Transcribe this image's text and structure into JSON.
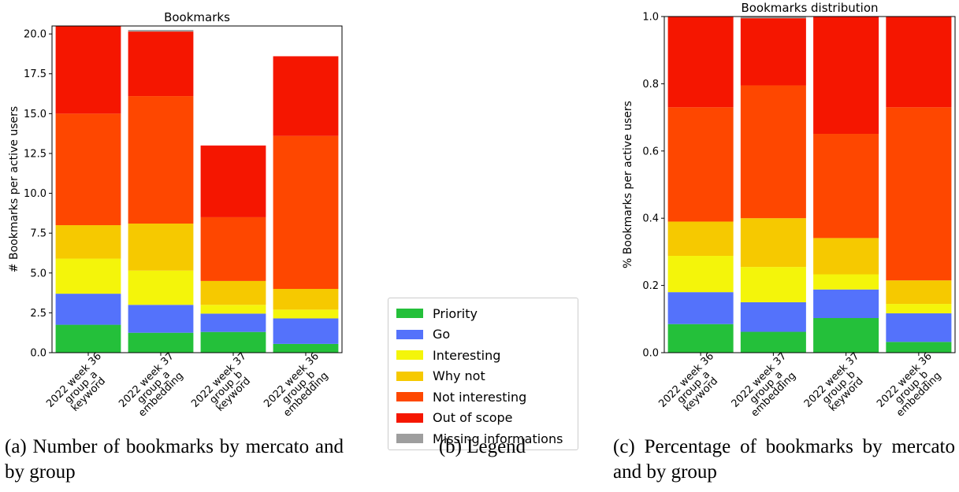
{
  "chart_data": [
    {
      "type": "bar",
      "stacked": true,
      "title": "Bookmarks",
      "ylabel": "# Bookmarks per active users",
      "xlabel": "",
      "ylim": [
        0,
        20.5
      ],
      "yticks": [
        "0.0",
        "2.5",
        "5.0",
        "7.5",
        "10.0",
        "12.5",
        "15.0",
        "17.5",
        "20.0"
      ],
      "categories": [
        [
          "2022 week 36",
          "group_a",
          "keyword"
        ],
        [
          "2022 week 37",
          "group_a",
          "embedding"
        ],
        [
          "2022 week 37",
          "group_b",
          "keyword"
        ],
        [
          "2022 week 36",
          "group_b",
          "embedding"
        ]
      ],
      "series": [
        {
          "name": "Priority",
          "values": [
            1.75,
            1.25,
            1.3,
            0.55
          ]
        },
        {
          "name": "Go",
          "values": [
            1.95,
            1.75,
            1.15,
            1.6
          ]
        },
        {
          "name": "Interesting",
          "values": [
            2.2,
            2.15,
            0.55,
            0.55
          ]
        },
        {
          "name": "Why not",
          "values": [
            2.1,
            2.95,
            1.5,
            1.3
          ]
        },
        {
          "name": "Not interesting",
          "values": [
            7.0,
            8.0,
            4.0,
            9.6
          ]
        },
        {
          "name": "Out of scope",
          "values": [
            5.5,
            4.05,
            4.5,
            5.0
          ]
        },
        {
          "name": "Missing informations",
          "values": [
            0.0,
            0.1,
            0.0,
            0.0
          ]
        }
      ]
    },
    {
      "type": "bar",
      "stacked": true,
      "title": "Bookmarks distribution",
      "ylabel": "% Bookmarks per active users",
      "xlabel": "",
      "ylim": [
        0,
        1.0
      ],
      "yticks": [
        "0.0",
        "0.2",
        "0.4",
        "0.6",
        "0.8",
        "1.0"
      ],
      "categories": [
        [
          "2022 week 36",
          "group_a",
          "keyword"
        ],
        [
          "2022 week 37",
          "group_a",
          "embedding"
        ],
        [
          "2022 week 37",
          "group_b",
          "keyword"
        ],
        [
          "2022 week 36",
          "group_b",
          "embedding"
        ]
      ],
      "series": [
        {
          "name": "Priority",
          "values": [
            0.085,
            0.062,
            0.103,
            0.032
          ]
        },
        {
          "name": "Go",
          "values": [
            0.095,
            0.088,
            0.085,
            0.085
          ]
        },
        {
          "name": "Interesting",
          "values": [
            0.108,
            0.105,
            0.045,
            0.028
          ]
        },
        {
          "name": "Why not",
          "values": [
            0.102,
            0.145,
            0.108,
            0.07
          ]
        },
        {
          "name": "Not interesting",
          "values": [
            0.34,
            0.395,
            0.31,
            0.515
          ]
        },
        {
          "name": "Out of scope",
          "values": [
            0.27,
            0.2,
            0.349,
            0.27
          ]
        },
        {
          "name": "Missing informations",
          "values": [
            0.0,
            0.005,
            0.0,
            0.0
          ]
        }
      ]
    }
  ],
  "colors": {
    "Priority": "#24c03a",
    "Go": "#5472fb",
    "Interesting": "#f4f50a",
    "Why not": "#f6c900",
    "Not interesting": "#fe4700",
    "Out of scope": "#f51600",
    "Missing informations": "#9e9e9e"
  },
  "legend": {
    "items": [
      "Priority",
      "Go",
      "Interesting",
      "Why not",
      "Not interesting",
      "Out of scope",
      "Missing informations"
    ]
  },
  "captions": {
    "left": "(a)  Number  of  bookmarks  by mercato and by group",
    "middle": "(b) Legend",
    "right": "(c) Percentage of bookmarks by mercato and by group"
  }
}
